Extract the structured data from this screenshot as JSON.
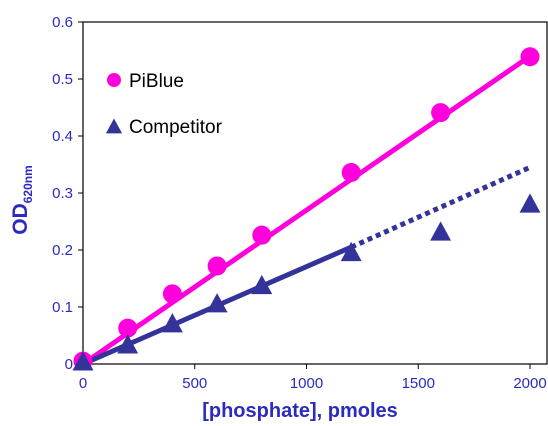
{
  "chart_data": {
    "type": "scatter",
    "title": "",
    "xlabel": "[phosphate], pmoles",
    "ylabel_main": "OD",
    "ylabel_sub": "620nm",
    "xlim": [
      0,
      2000
    ],
    "ylim": [
      0,
      0.6
    ],
    "x_ticks": [
      0,
      500,
      1000,
      1500,
      2000
    ],
    "y_ticks": [
      0,
      0.1,
      0.2,
      0.3,
      0.4,
      0.5,
      0.6
    ],
    "y_tick_labels": [
      "0",
      "0.1",
      "0.2",
      "0.3",
      "0.4",
      "0.5",
      "0.6"
    ],
    "grid": false,
    "legend_position": "top-left",
    "series": [
      {
        "name": "PiBlue",
        "marker": "circle",
        "color": "#ff00dd",
        "x": [
          0,
          200,
          400,
          600,
          800,
          1200,
          1600,
          2000
        ],
        "y": [
          0.005,
          0.063,
          0.123,
          0.172,
          0.226,
          0.336,
          0.441,
          0.539
        ],
        "fit_line": {
          "x": [
            0,
            2000
          ],
          "y": [
            0.0,
            0.54
          ],
          "style": "solid"
        }
      },
      {
        "name": "Competitor",
        "marker": "triangle",
        "color": "#333399",
        "x": [
          0,
          200,
          400,
          600,
          800,
          1200,
          1600,
          2000
        ],
        "y": [
          0.003,
          0.033,
          0.07,
          0.105,
          0.137,
          0.195,
          0.231,
          0.28
        ],
        "fit_line": {
          "x": [
            0,
            1200
          ],
          "y": [
            0.0,
            0.205
          ],
          "style": "solid"
        },
        "extrapolated_line": {
          "x": [
            1200,
            2000
          ],
          "y": [
            0.205,
            0.345
          ],
          "style": "dotted"
        }
      }
    ]
  }
}
